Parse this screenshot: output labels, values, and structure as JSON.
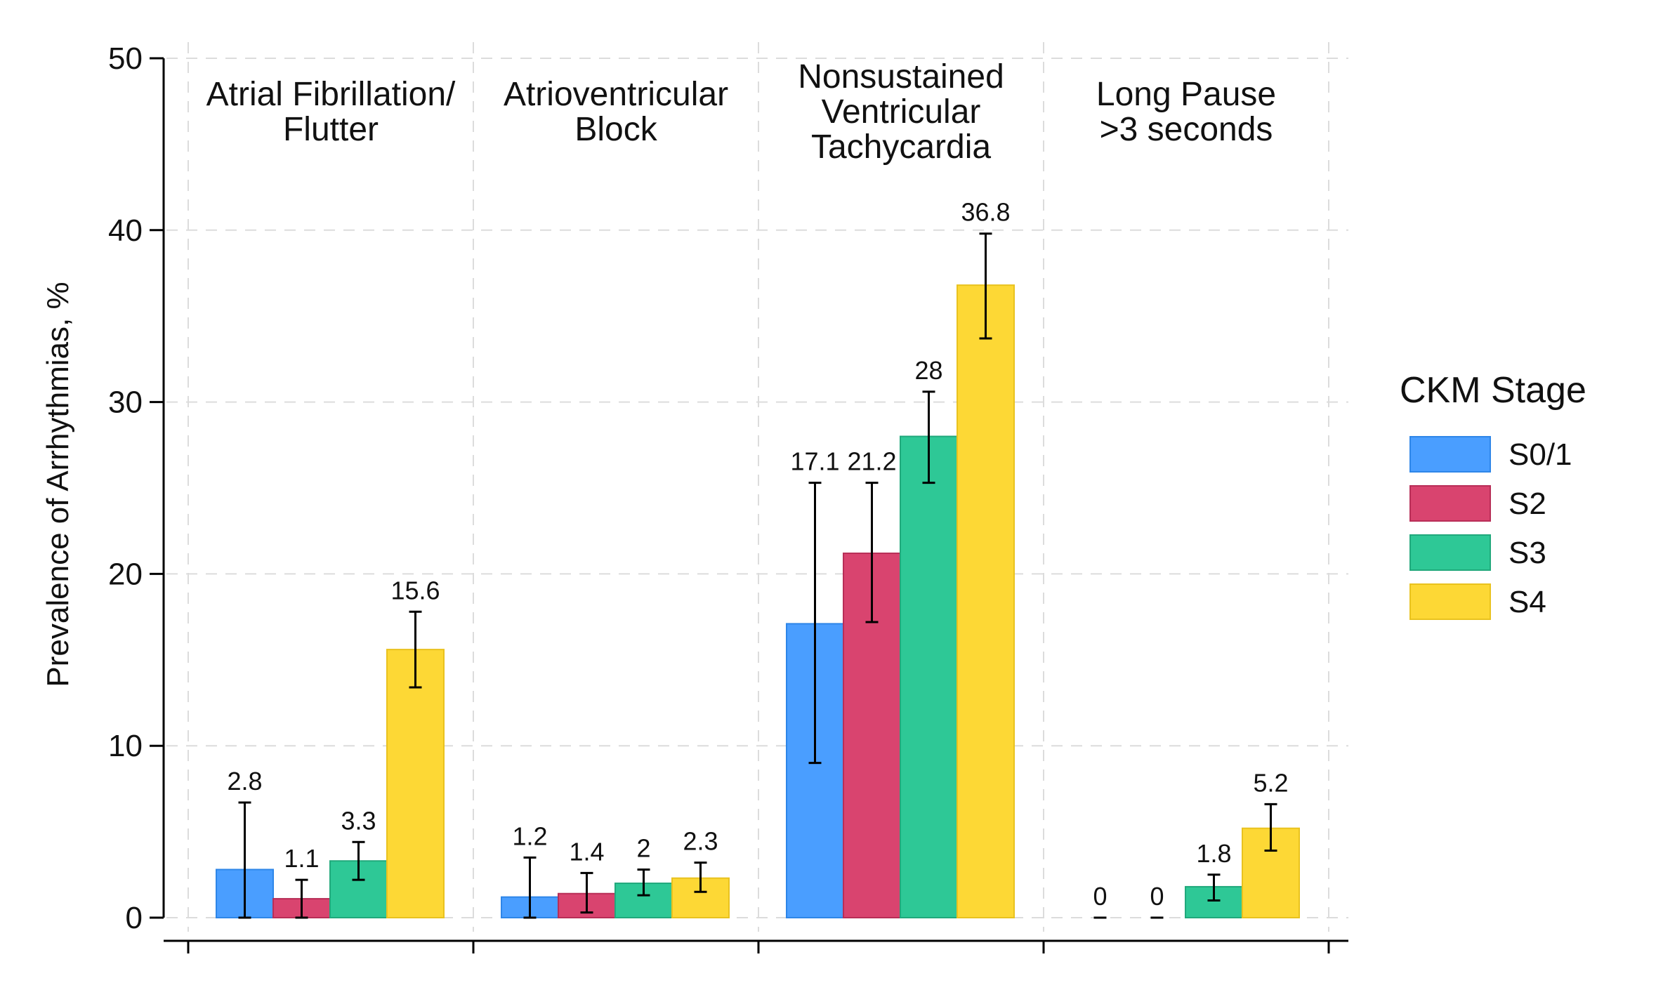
{
  "chart_data": {
    "type": "bar",
    "ylabel": "Prevalence of Arrhythmias, %",
    "ylim": [
      0,
      50
    ],
    "yticks": [
      "0",
      "10",
      "20",
      "30",
      "40",
      "50"
    ],
    "grid": true,
    "legend": {
      "title": "CKM Stage",
      "placement": "right",
      "entries": [
        {
          "name": "S0/1",
          "color": "#4A9EFF"
        },
        {
          "name": "S2",
          "color": "#D9446F"
        },
        {
          "name": "S3",
          "color": "#2EC896"
        },
        {
          "name": "S4",
          "color": "#FDD835"
        }
      ]
    },
    "series_colors": [
      "#4A9EFF",
      "#D9446F",
      "#2EC896",
      "#FDD835"
    ],
    "series_edge_colors": [
      "#2E86E8",
      "#B82E57",
      "#21A97C",
      "#E9C21E"
    ],
    "series_names": [
      "S0/1",
      "S2",
      "S3",
      "S4"
    ],
    "panels": [
      {
        "title_lines": [
          "Atrial Fibrillation/",
          "Flutter"
        ],
        "values": [
          2.8,
          1.1,
          3.3,
          15.6
        ],
        "labels": [
          "2.8",
          "1.1",
          "3.3",
          "15.6"
        ],
        "ci_low": [
          0,
          0,
          2.2,
          13.4
        ],
        "ci_high": [
          6.7,
          2.2,
          4.4,
          17.8
        ]
      },
      {
        "title_lines": [
          "Atrioventricular",
          "Block"
        ],
        "values": [
          1.2,
          1.4,
          2,
          2.3
        ],
        "labels": [
          "1.2",
          "1.4",
          "2",
          "2.3"
        ],
        "ci_low": [
          0,
          0.3,
          1.3,
          1.5
        ],
        "ci_high": [
          3.5,
          2.6,
          2.8,
          3.2
        ]
      },
      {
        "title_lines": [
          "Nonsustained",
          "Ventricular",
          "Tachycardia"
        ],
        "values": [
          17.1,
          21.2,
          28,
          36.8
        ],
        "labels": [
          "17.1",
          "21.2",
          "28",
          "36.8"
        ],
        "ci_low": [
          9,
          17.2,
          25.3,
          33.7
        ],
        "ci_high": [
          25.3,
          25.3,
          30.6,
          39.8
        ]
      },
      {
        "title_lines": [
          "Long Pause",
          ">3 seconds"
        ],
        "values": [
          0,
          0,
          1.8,
          5.2
        ],
        "labels": [
          "0",
          "0",
          "1.8",
          "5.2"
        ],
        "ci_low": [
          0,
          0,
          1.0,
          3.9
        ],
        "ci_high": [
          0,
          0,
          2.5,
          6.6
        ]
      }
    ]
  }
}
